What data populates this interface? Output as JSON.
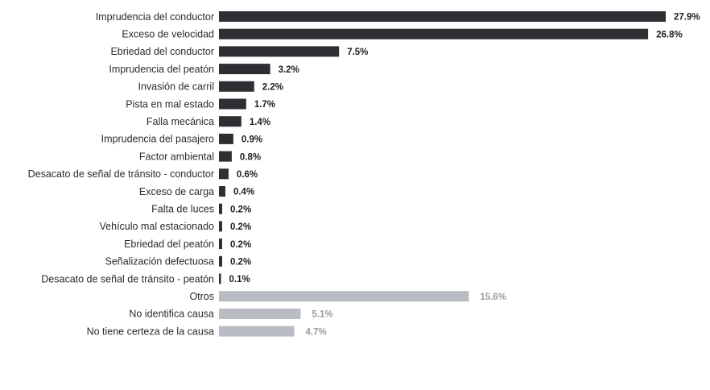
{
  "chart_data": {
    "type": "bar",
    "orientation": "horizontal",
    "title": "",
    "xlabel": "",
    "ylabel": "",
    "grid": false,
    "legend": "none",
    "xlim": [
      0,
      27.9
    ],
    "categories": [
      "Imprudencia del conductor",
      "Exceso de velocidad",
      "Ebriedad del conductor",
      "Imprudencia del peatón",
      "Invasión de carril",
      "Pista en mal estado",
      "Falla mecánica",
      "Imprudencia del pasajero",
      "Factor ambiental",
      "Desacato de señal de tránsito - conductor",
      "Exceso de carga",
      "Falta de luces",
      "Vehículo mal estacionado",
      "Ebriedad del peatón",
      "Señalización defectuosa",
      "Desacato de señal de tránsito - peatón",
      "Otros",
      "No identifica causa",
      "No tiene certeza de la causa"
    ],
    "values": [
      27.9,
      26.8,
      7.5,
      3.2,
      2.2,
      1.7,
      1.4,
      0.9,
      0.8,
      0.6,
      0.4,
      0.2,
      0.2,
      0.2,
      0.2,
      0.1,
      15.6,
      5.1,
      4.7
    ],
    "value_labels": [
      "27.9%",
      "26.8%",
      "7.5%",
      "3.2%",
      "2.2%",
      "1.7%",
      "1.4%",
      "0.9%",
      "0.8%",
      "0.6%",
      "0.4%",
      "0.2%",
      "0.2%",
      "0.2%",
      "0.2%",
      "0.1%",
      "15.6%",
      "5.1%",
      "4.7%"
    ],
    "groups": [
      "cause",
      "cause",
      "cause",
      "cause",
      "cause",
      "cause",
      "cause",
      "cause",
      "cause",
      "cause",
      "cause",
      "cause",
      "cause",
      "cause",
      "cause",
      "cause",
      "other",
      "other",
      "other"
    ],
    "colors": {
      "cause_bar": "#2e2e33",
      "cause_label": "#1e1e1e",
      "other_bar": "#b9bcc2",
      "other_label": "#9a9ca2",
      "category_text": "#2b2b2b"
    }
  }
}
